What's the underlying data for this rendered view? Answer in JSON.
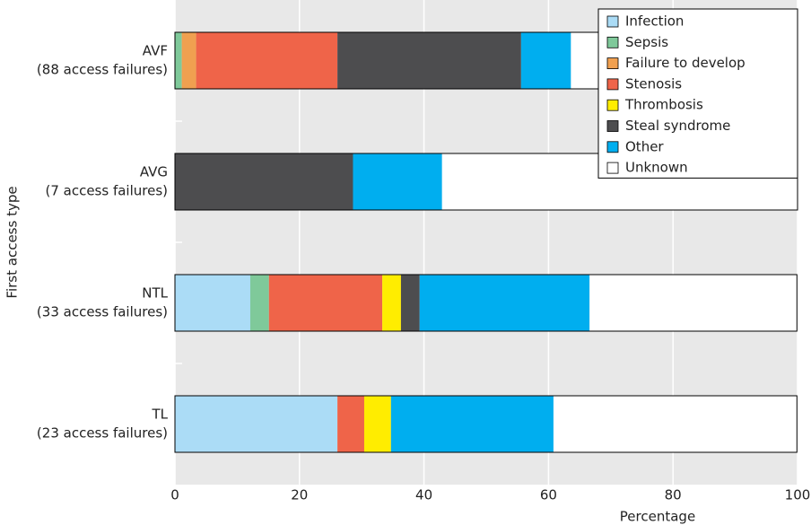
{
  "chart_data": {
    "type": "stacked-barh",
    "x_label": "Percentage",
    "y_label": "First access type",
    "categories": [
      [
        "AVF",
        "(88 access failures)"
      ],
      [
        "AVG",
        "(7 access failures)"
      ],
      [
        "NTL",
        "(33 access failures)"
      ],
      [
        "TL",
        "(23 access failures)"
      ]
    ],
    "series": [
      {
        "name": "Infection",
        "color": "#abdcf6",
        "values": [
          0,
          0,
          12.1,
          26.1
        ]
      },
      {
        "name": "Sepsis",
        "color": "#7fc99a",
        "values": [
          1.1,
          0,
          3.0,
          0
        ]
      },
      {
        "name": "Failure to develop",
        "color": "#f0a050",
        "values": [
          2.3,
          0,
          0,
          0
        ]
      },
      {
        "name": "Stenosis",
        "color": "#ef6449",
        "values": [
          22.7,
          0,
          18.2,
          4.3
        ]
      },
      {
        "name": "Thrombosis",
        "color": "#ffed00",
        "values": [
          0,
          0,
          3.0,
          4.3
        ]
      },
      {
        "name": "Steal syndrome",
        "color": "#4d4d4f",
        "values": [
          29.5,
          28.6,
          3.0,
          0
        ]
      },
      {
        "name": "Other",
        "color": "#00aeef",
        "values": [
          8.0,
          14.3,
          27.3,
          26.1
        ]
      },
      {
        "name": "Unknown",
        "color": "#ffffff",
        "values": [
          36.4,
          57.1,
          33.3,
          39.1
        ]
      }
    ],
    "xlim": [
      0,
      100
    ],
    "xticks": [
      0,
      20,
      40,
      60,
      80,
      100
    ],
    "grid": true,
    "legend": "upper right"
  }
}
